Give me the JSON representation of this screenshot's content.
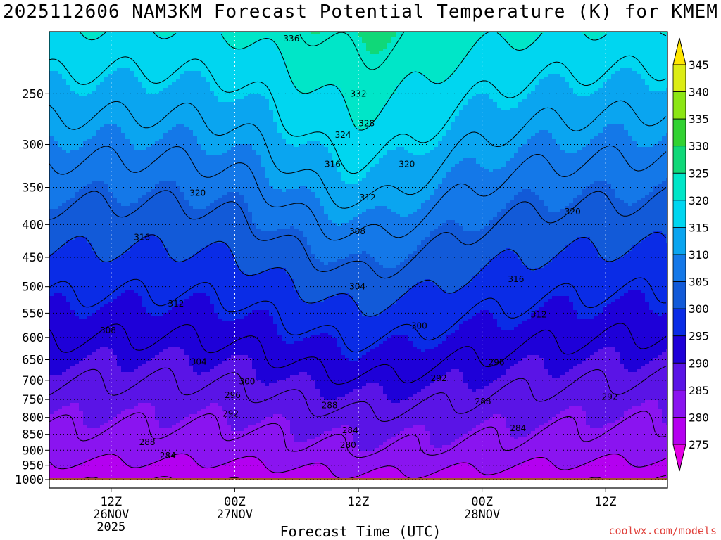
{
  "chart_data": {
    "type": "heatmap",
    "title": "2025112606 NAM3KM Forecast Potential Temperature (K) for KMEM",
    "xlabel": "Forecast Time (UTC)",
    "ylabel": "",
    "credit": "coolwx.com/models",
    "y_axis": {
      "scale": "log",
      "ylim": [
        1000,
        200
      ],
      "ticks": [
        250,
        300,
        350,
        400,
        450,
        500,
        550,
        600,
        650,
        700,
        750,
        800,
        850,
        900,
        950,
        1000
      ]
    },
    "x_axis": {
      "xlim_hours": [
        0,
        60
      ],
      "ticks": [
        {
          "hour": 6,
          "label": "12Z",
          "sub": "26NOV",
          "sub2": "2025"
        },
        {
          "hour": 18,
          "label": "00Z",
          "sub": "27NOV",
          "sub2": ""
        },
        {
          "hour": 30,
          "label": "12Z",
          "sub": "",
          "sub2": ""
        },
        {
          "hour": 42,
          "label": "00Z",
          "sub": "28NOV",
          "sub2": ""
        },
        {
          "hour": 54,
          "label": "12Z",
          "sub": "",
          "sub2": ""
        }
      ]
    },
    "grid": true,
    "colorbar": {
      "levels": [
        275,
        280,
        285,
        290,
        295,
        300,
        305,
        310,
        315,
        320,
        325,
        330,
        335,
        340,
        345
      ],
      "colors": [
        "#e400e4",
        "#b400f0",
        "#8a14f0",
        "#5a14e6",
        "#1e00d8",
        "#0a2ce6",
        "#125ad8",
        "#1478e8",
        "#0aa5f0",
        "#00d6f0",
        "#00e6c8",
        "#10d878",
        "#32d232",
        "#8ce614",
        "#dcec14",
        "#ffe600"
      ]
    },
    "ground_color": "#a0522d",
    "contour_step": 4,
    "contour_labels": [
      {
        "hour": 23.5,
        "p": 205,
        "value": 336
      },
      {
        "hour": 30.0,
        "p": 250,
        "value": 332
      },
      {
        "hour": 30.8,
        "p": 278,
        "value": 328
      },
      {
        "hour": 28.5,
        "p": 290,
        "value": 324
      },
      {
        "hour": 27.5,
        "p": 322,
        "value": 316
      },
      {
        "hour": 34.7,
        "p": 322,
        "value": 320
      },
      {
        "hour": 14.4,
        "p": 357,
        "value": 320
      },
      {
        "hour": 30.9,
        "p": 363,
        "value": 312
      },
      {
        "hour": 50.8,
        "p": 382,
        "value": 320
      },
      {
        "hour": 29.9,
        "p": 410,
        "value": 308
      },
      {
        "hour": 9.0,
        "p": 419,
        "value": 316
      },
      {
        "hour": 29.9,
        "p": 500,
        "value": 304
      },
      {
        "hour": 45.3,
        "p": 487,
        "value": 316
      },
      {
        "hour": 12.3,
        "p": 532,
        "value": 312
      },
      {
        "hour": 47.5,
        "p": 553,
        "value": 312
      },
      {
        "hour": 5.7,
        "p": 585,
        "value": 308
      },
      {
        "hour": 35.9,
        "p": 576,
        "value": 300
      },
      {
        "hour": 14.5,
        "p": 655,
        "value": 304
      },
      {
        "hour": 43.4,
        "p": 657,
        "value": 296
      },
      {
        "hour": 19.2,
        "p": 703,
        "value": 300
      },
      {
        "hour": 37.8,
        "p": 695,
        "value": 292
      },
      {
        "hour": 17.8,
        "p": 738,
        "value": 296
      },
      {
        "hour": 42.1,
        "p": 755,
        "value": 288
      },
      {
        "hour": 54.4,
        "p": 743,
        "value": 292
      },
      {
        "hour": 17.6,
        "p": 790,
        "value": 292
      },
      {
        "hour": 27.2,
        "p": 766,
        "value": 288
      },
      {
        "hour": 9.5,
        "p": 875,
        "value": 288
      },
      {
        "hour": 29.2,
        "p": 838,
        "value": 284
      },
      {
        "hour": 45.5,
        "p": 832,
        "value": 284
      },
      {
        "hour": 11.5,
        "p": 918,
        "value": 284
      },
      {
        "hour": 29.0,
        "p": 883,
        "value": 280
      }
    ],
    "theta_850_profile": [
      {
        "hour": 0,
        "theta": 283.5
      },
      {
        "hour": 6,
        "theta": 283.3
      },
      {
        "hour": 12,
        "theta": 283.2
      },
      {
        "hour": 18,
        "theta": 283.4
      },
      {
        "hour": 24,
        "theta": 284.5
      },
      {
        "hour": 30,
        "theta": 285.5
      },
      {
        "hour": 36,
        "theta": 285.2
      },
      {
        "hour": 42,
        "theta": 284.6
      },
      {
        "hour": 48,
        "theta": 283.8
      },
      {
        "hour": 54,
        "theta": 283.3
      },
      {
        "hour": 60,
        "theta": 283.0
      }
    ]
  }
}
